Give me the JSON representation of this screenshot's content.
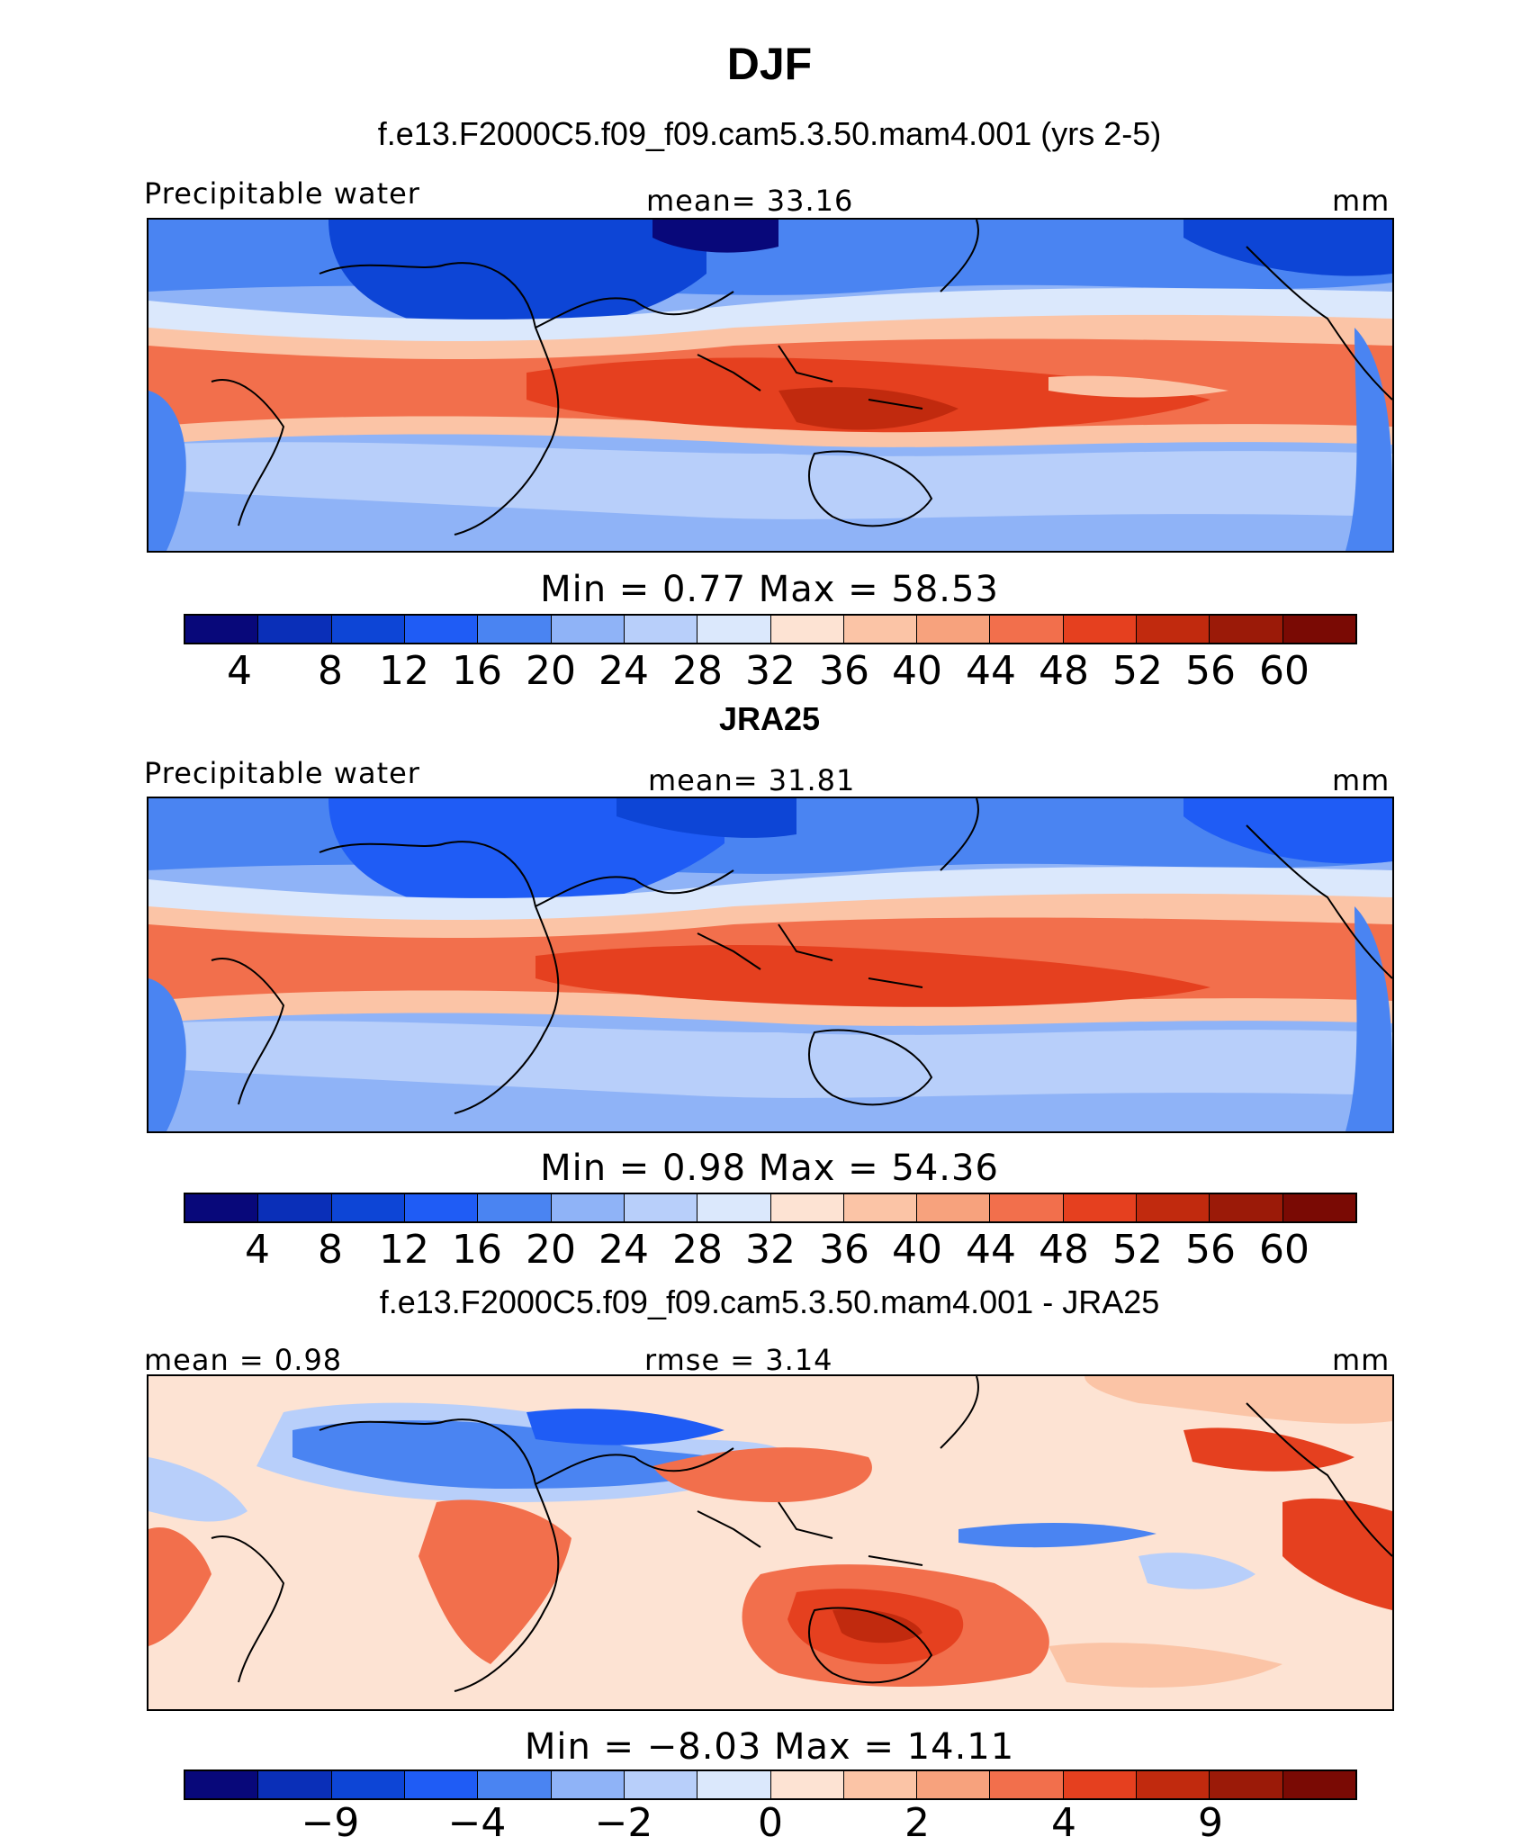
{
  "figure_title": "DJF",
  "colors": {
    "levels": [
      "#08087a",
      "#0a2fb8",
      "#0d45d6",
      "#1f5cf5",
      "#4a84f2",
      "#8fb3f7",
      "#b8cffa",
      "#dbe8fc",
      "#fde3d3",
      "#fbc4a6",
      "#f7a27d",
      "#f26f4c",
      "#e5401f",
      "#c12a0e",
      "#9b1a08",
      "#7a0a04"
    ]
  },
  "panels": [
    {
      "title": "f.e13.F2000C5.f09_f09.cam5.3.50.mam4.001 (yrs 2-5)",
      "left_label": "Precipitable water",
      "center_label": "mean=   33.16",
      "right_label": "mm",
      "minmax": "Min  =    0.77  Max  =   58.53",
      "ticks": [
        "4",
        "8",
        "12",
        "16",
        "20",
        "24",
        "28",
        "32",
        "36",
        "40",
        "44",
        "48",
        "52",
        "56",
        "60"
      ]
    },
    {
      "title": "JRA25",
      "left_label": "Precipitable water",
      "center_label": "mean=   31.81",
      "right_label": "mm",
      "minmax": "Min  =    0.98  Max  =   54.36",
      "ticks": [
        "4",
        "8",
        "12",
        "16",
        "20",
        "24",
        "28",
        "32",
        "36",
        "40",
        "44",
        "48",
        "52",
        "56",
        "60"
      ]
    },
    {
      "title": "f.e13.F2000C5.f09_f09.cam5.3.50.mam4.001 - JRA25",
      "left_label": "mean  =    0.98",
      "center_label": "rmse  =    3.14",
      "right_label": "mm",
      "minmax": "Min  =   −8.03  Max  =   14.11",
      "ticks": [
        "−9",
        "−4",
        "−2",
        "0",
        "2",
        "4",
        "9"
      ]
    }
  ]
}
